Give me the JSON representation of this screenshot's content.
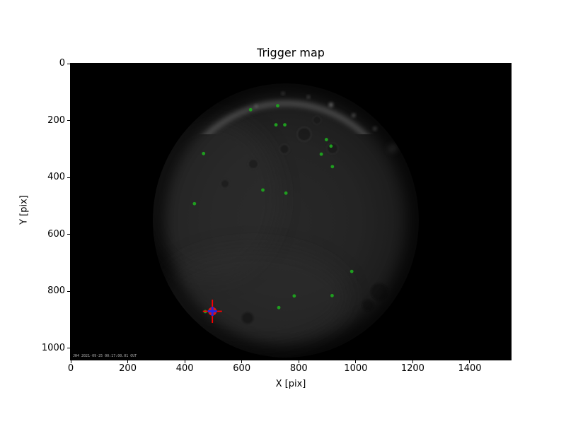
{
  "figure": {
    "title": "Trigger map",
    "xlabel": "X [pix]",
    "ylabel": "Y [pix]",
    "background_color": "#ffffff",
    "plot_background_color": "#000000",
    "text_color": "#000000"
  },
  "axes": {
    "x_tick_labels": [
      "0",
      "200",
      "400",
      "600",
      "800",
      "1000",
      "1200",
      "1400"
    ],
    "x_tick_values": [
      0,
      200,
      400,
      600,
      800,
      1000,
      1200,
      1400
    ],
    "y_tick_labels": [
      "0",
      "200",
      "400",
      "600",
      "800",
      "1000"
    ],
    "y_tick_values": [
      0,
      200,
      400,
      600,
      800,
      1000
    ]
  },
  "watermark": "JH4 2021-09-25 00:17:00.01 OUT",
  "chart_data": {
    "type": "scatter",
    "title": "Trigger map",
    "xlabel": "X [pix]",
    "ylabel": "Y [pix]",
    "xlim": [
      0,
      1544
    ],
    "ylim": [
      0,
      1040
    ],
    "y_axis_inverted": true,
    "grid": false,
    "legend": "none",
    "background": "grayscale fisheye camera frame: dark circular field of view on black, brighter arc along upper rim",
    "fov_ellipse": {
      "center": [
        755,
        551
      ],
      "radius_x": 467,
      "radius_y": 482
    },
    "series": [
      {
        "name": "trigger-points",
        "marker": "o",
        "color": "#1f9e1f",
        "marker_radius_px": 2.4,
        "points": [
          [
            631,
            162
          ],
          [
            726,
            148
          ],
          [
            720,
            215
          ],
          [
            751,
            215
          ],
          [
            897,
            267
          ],
          [
            913,
            290
          ],
          [
            879,
            318
          ],
          [
            918,
            362
          ],
          [
            466,
            316
          ],
          [
            674,
            444
          ],
          [
            755,
            455
          ],
          [
            434,
            492
          ],
          [
            986,
            730
          ],
          [
            784,
            816
          ],
          [
            917,
            815
          ],
          [
            730,
            857
          ],
          [
            472,
            871
          ]
        ]
      },
      {
        "name": "selected-trigger",
        "marker": "dot-with-crosshair",
        "point": [
          497,
          870
        ],
        "dot_color": "#dd1313",
        "crosshair_color": "#ff0000",
        "plus_color": "#2424dd"
      }
    ]
  }
}
